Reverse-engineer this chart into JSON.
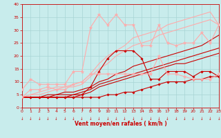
{
  "xlabel": "Vent moyen/en rafales ( km/h )",
  "xlim": [
    0,
    23
  ],
  "ylim": [
    0,
    40
  ],
  "xticks": [
    0,
    1,
    2,
    3,
    4,
    5,
    6,
    7,
    8,
    9,
    10,
    11,
    12,
    13,
    14,
    15,
    16,
    17,
    18,
    19,
    20,
    21,
    22,
    23
  ],
  "yticks": [
    0,
    5,
    10,
    15,
    20,
    25,
    30,
    35,
    40
  ],
  "bg_color": "#c8ecec",
  "grid_color": "#a8d4d4",
  "series": [
    {
      "x": [
        0,
        1,
        2,
        3,
        4,
        5,
        6,
        7,
        8,
        9,
        10,
        11,
        12,
        13,
        14,
        15,
        16,
        17,
        18,
        19,
        20,
        21,
        22,
        23
      ],
      "y": [
        4,
        4,
        4,
        4,
        4,
        4,
        4,
        4,
        4,
        4,
        5,
        5,
        6,
        6,
        7,
        8,
        9,
        10,
        10,
        10,
        11,
        11,
        12,
        12
      ],
      "color": "#cc0000",
      "lw": 0.8,
      "marker": "D",
      "ms": 1.8,
      "zorder": 4
    },
    {
      "x": [
        0,
        1,
        2,
        3,
        4,
        5,
        6,
        7,
        8,
        9,
        10,
        11,
        12,
        13,
        14,
        15,
        16,
        17,
        18,
        19,
        20,
        21,
        22,
        23
      ],
      "y": [
        4,
        4,
        4,
        4,
        4,
        4,
        4,
        5,
        8,
        14,
        19,
        22,
        22,
        22,
        19,
        11,
        11,
        14,
        14,
        14,
        12,
        14,
        14,
        12
      ],
      "color": "#cc0000",
      "lw": 0.8,
      "marker": "D",
      "ms": 1.8,
      "zorder": 4
    },
    {
      "x": [
        0,
        1,
        2,
        3,
        4,
        5,
        6,
        7,
        8,
        9,
        10,
        11,
        12,
        13,
        14,
        15,
        16,
        17,
        18,
        19,
        20,
        21,
        22,
        23
      ],
      "y": [
        4,
        4,
        4,
        4,
        4,
        4,
        5,
        5,
        6,
        8,
        9,
        10,
        11,
        12,
        13,
        14,
        15,
        16,
        17,
        17,
        18,
        19,
        20,
        21
      ],
      "color": "#cc0000",
      "lw": 0.8,
      "marker": null,
      "ms": 0,
      "zorder": 2
    },
    {
      "x": [
        0,
        1,
        2,
        3,
        4,
        5,
        6,
        7,
        8,
        9,
        10,
        11,
        12,
        13,
        14,
        15,
        16,
        17,
        18,
        19,
        20,
        21,
        22,
        23
      ],
      "y": [
        4,
        4,
        4,
        4,
        5,
        5,
        5,
        6,
        7,
        9,
        10,
        11,
        12,
        13,
        14,
        15,
        16,
        17,
        18,
        19,
        20,
        21,
        22,
        23
      ],
      "color": "#cc0000",
      "lw": 0.8,
      "marker": null,
      "ms": 0,
      "zorder": 2
    },
    {
      "x": [
        0,
        1,
        2,
        3,
        4,
        5,
        6,
        7,
        8,
        9,
        10,
        11,
        12,
        13,
        14,
        15,
        16,
        17,
        18,
        19,
        20,
        21,
        22,
        23
      ],
      "y": [
        4,
        4,
        4,
        5,
        5,
        6,
        6,
        7,
        8,
        10,
        11,
        13,
        14,
        16,
        17,
        18,
        19,
        20,
        21,
        22,
        23,
        24,
        26,
        28
      ],
      "color": "#cc0000",
      "lw": 0.8,
      "marker": null,
      "ms": 0,
      "zorder": 2
    },
    {
      "x": [
        0,
        1,
        2,
        3,
        4,
        5,
        6,
        7,
        8,
        9,
        10,
        11,
        12,
        13,
        14,
        15,
        16,
        17,
        18,
        19,
        20,
        21,
        22,
        23
      ],
      "y": [
        7,
        11,
        9,
        9,
        9,
        9,
        14,
        14,
        31,
        36,
        32,
        36,
        32,
        32,
        24,
        24,
        32,
        25,
        24,
        25,
        25,
        29,
        25,
        32
      ],
      "color": "#ffaaaa",
      "lw": 0.8,
      "marker": "*",
      "ms": 3.5,
      "zorder": 4
    },
    {
      "x": [
        0,
        1,
        2,
        3,
        4,
        5,
        6,
        7,
        8,
        9,
        10,
        11,
        12,
        13,
        14,
        15,
        16,
        17,
        18,
        19,
        20,
        21,
        22,
        23
      ],
      "y": [
        4,
        7,
        7,
        8,
        7,
        7,
        9,
        10,
        13,
        13,
        13,
        13,
        13,
        13,
        13,
        13,
        20,
        13,
        13,
        12,
        11,
        11,
        11,
        13
      ],
      "color": "#ffaaaa",
      "lw": 0.8,
      "marker": "*",
      "ms": 3.5,
      "zorder": 4
    },
    {
      "x": [
        0,
        1,
        2,
        3,
        4,
        5,
        6,
        7,
        8,
        9,
        10,
        11,
        12,
        13,
        14,
        15,
        16,
        17,
        18,
        19,
        20,
        21,
        22,
        23
      ],
      "y": [
        4,
        5,
        5,
        6,
        7,
        8,
        8,
        9,
        12,
        15,
        17,
        20,
        22,
        24,
        25,
        26,
        28,
        29,
        30,
        31,
        32,
        33,
        34,
        32
      ],
      "color": "#ffaaaa",
      "lw": 0.8,
      "marker": null,
      "ms": 0,
      "zorder": 2
    },
    {
      "x": [
        0,
        1,
        2,
        3,
        4,
        5,
        6,
        7,
        8,
        9,
        10,
        11,
        12,
        13,
        14,
        15,
        16,
        17,
        18,
        19,
        20,
        21,
        22,
        23
      ],
      "y": [
        4,
        5,
        6,
        7,
        8,
        8,
        9,
        10,
        13,
        17,
        20,
        22,
        24,
        27,
        28,
        29,
        30,
        32,
        33,
        34,
        35,
        36,
        37,
        32
      ],
      "color": "#ffaaaa",
      "lw": 0.8,
      "marker": null,
      "ms": 0,
      "zorder": 2
    }
  ]
}
